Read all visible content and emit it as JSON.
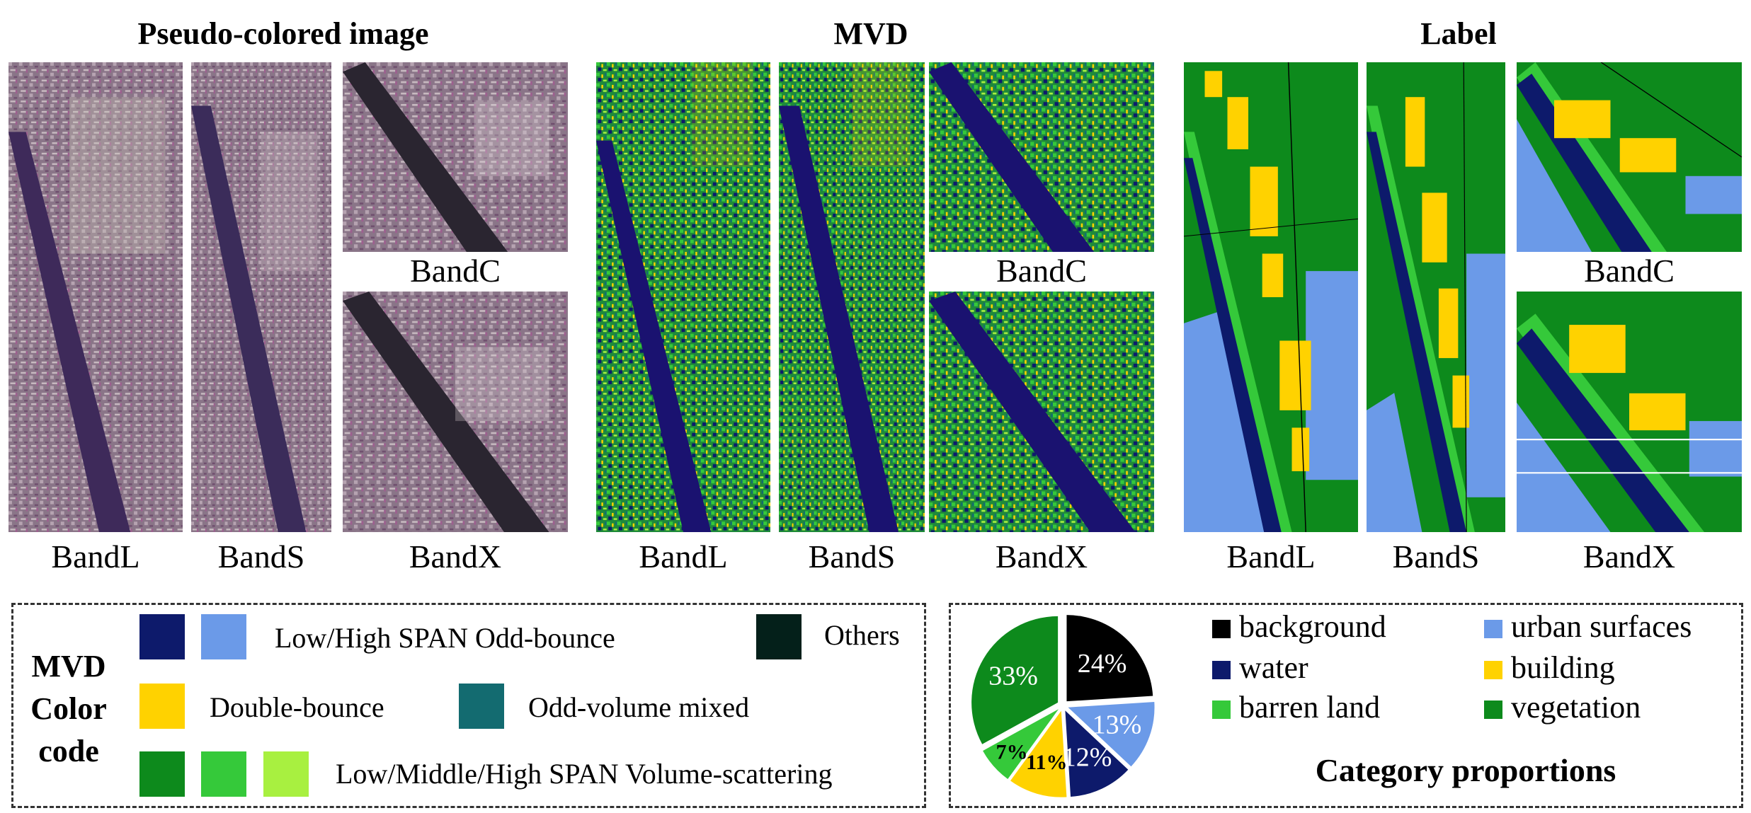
{
  "titles": {
    "pseudo": "Pseudo-colored image",
    "mvd": "MVD",
    "label": "Label"
  },
  "band_labels": {
    "L": "BandL",
    "S": "BandS",
    "X": "BandX",
    "C": "BandC"
  },
  "mvd_legend": {
    "heading_line1": "MVD",
    "heading_line2": "Color",
    "heading_line3": "code",
    "items": [
      {
        "text": "Low/High SPAN Odd-bounce",
        "colors": [
          "#0d1a6b",
          "#6b9ae8"
        ]
      },
      {
        "text": "Others",
        "colors": [
          "#04201a"
        ]
      },
      {
        "text": "Double-bounce",
        "colors": [
          "#ffd200"
        ]
      },
      {
        "text": "Odd-volume mixed",
        "colors": [
          "#136b70"
        ]
      },
      {
        "text": "Low/Middle/High SPAN Volume-scattering",
        "colors": [
          "#0d8a1c",
          "#35c93a",
          "#a8f040"
        ]
      }
    ]
  },
  "category_legend": {
    "title": "Category proportions",
    "items": [
      {
        "name": "background",
        "color": "#000000"
      },
      {
        "name": "urban surfaces",
        "color": "#6b9ae8"
      },
      {
        "name": "water",
        "color": "#0d1a6b"
      },
      {
        "name": "building",
        "color": "#ffd200"
      },
      {
        "name": "barren land",
        "color": "#35c93a"
      },
      {
        "name": "vegetation",
        "color": "#0d8a1c"
      }
    ]
  },
  "chart_data": {
    "type": "pie",
    "slices": [
      {
        "name": "background",
        "value": 24,
        "label": "24%",
        "color": "#000000"
      },
      {
        "name": "urban surfaces",
        "value": 13,
        "label": "13%",
        "color": "#6b9ae8"
      },
      {
        "name": "water",
        "value": 12,
        "label": "12%",
        "color": "#0d1a6b"
      },
      {
        "name": "building",
        "value": 11,
        "label": "11%",
        "color": "#ffd200"
      },
      {
        "name": "barren land",
        "value": 7,
        "label": "7%",
        "color": "#35c93a"
      },
      {
        "name": "vegetation",
        "value": 33,
        "label": "33%",
        "color": "#0d8a1c"
      }
    ],
    "title": "Category proportions"
  }
}
